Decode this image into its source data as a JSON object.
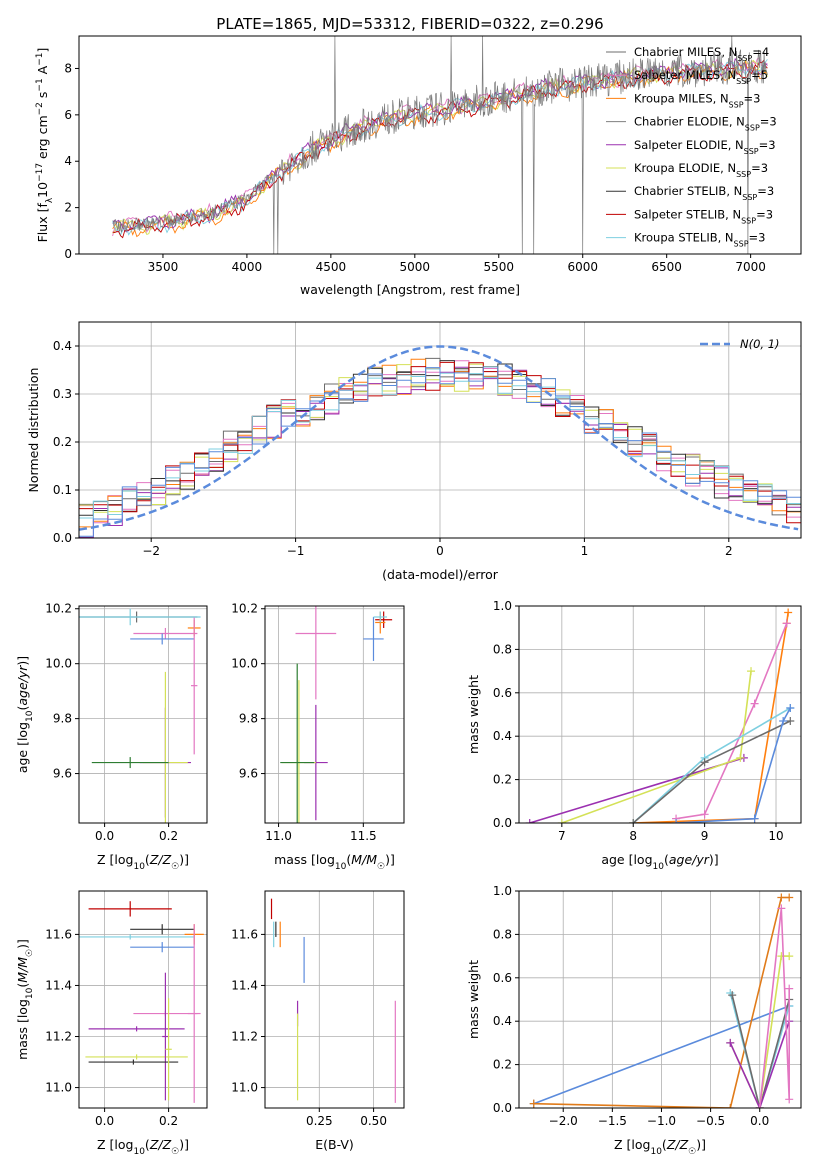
{
  "figure_title": "PLATE=1865, MJD=53312, FIBERID=0322, z=0.296",
  "colors": {
    "chabrier_miles": "#6c6c6c",
    "salpeter_miles": "#e377c2",
    "kroupa_miles": "#ff7f0e",
    "chabrier_elodie": "#7f7f7f",
    "salpeter_elodie": "#9b30b0",
    "kroupa_elodie": "#d4e157",
    "chabrier_stelib": "#333333",
    "salpeter_stelib": "#c00000",
    "kroupa_stelib": "#7ecfe0",
    "normal": "#5b8bdc",
    "blue_extra": "#5b8bdc",
    "green_extra": "#2e7d32",
    "orange_dark": "#e07b1a"
  },
  "chart_data": [
    {
      "id": "spectrum",
      "type": "line",
      "title": "PLATE=1865, MJD=53312, FIBERID=0322, z=0.296",
      "xlabel": "wavelength [Angstrom, rest frame]",
      "xlim": [
        3000,
        7300
      ],
      "ylim": [
        0,
        9.4
      ],
      "xticks": [
        3500,
        4000,
        4500,
        5000,
        5500,
        6000,
        6500,
        7000
      ],
      "yticks": [
        0,
        2,
        4,
        6,
        8
      ],
      "legend_position": "top-right",
      "legend": [
        {
          "label": "Chabrier MILES, N",
          "sub": "SSP",
          "tail": "=4",
          "color": "chabrier_miles"
        },
        {
          "label": "Salpeter MILES, N",
          "sub": "SSP",
          "tail": "=5",
          "color": "salpeter_miles"
        },
        {
          "label": "Kroupa MILES, N",
          "sub": "SSP",
          "tail": "=3",
          "color": "kroupa_miles"
        },
        {
          "label": "Chabrier ELODIE, N",
          "sub": "SSP",
          "tail": "=3",
          "color": "chabrier_elodie"
        },
        {
          "label": "Salpeter ELODIE, N",
          "sub": "SSP",
          "tail": "=3",
          "color": "salpeter_elodie"
        },
        {
          "label": "Kroupa ELODIE, N",
          "sub": "SSP",
          "tail": "=3",
          "color": "kroupa_elodie"
        },
        {
          "label": "Chabrier STELIB, N",
          "sub": "SSP",
          "tail": "=3",
          "color": "chabrier_stelib"
        },
        {
          "label": "Salpeter STELIB, N",
          "sub": "SSP",
          "tail": "=3",
          "color": "salpeter_stelib"
        },
        {
          "label": "Kroupa STELIB, N",
          "sub": "SSP",
          "tail": "=3",
          "color": "kroupa_stelib"
        }
      ],
      "continuum_x": [
        3200,
        3400,
        3600,
        3800,
        4000,
        4200,
        4400,
        4600,
        4800,
        5000,
        5200,
        5400,
        5600,
        5800,
        6000,
        6200,
        6400,
        6600,
        6800,
        7000,
        7100
      ],
      "continuum_y": [
        1.2,
        1.3,
        1.5,
        1.8,
        2.4,
        3.6,
        4.6,
        5.3,
        5.8,
        6.1,
        6.3,
        6.6,
        6.9,
        7.2,
        7.4,
        7.6,
        7.8,
        7.9,
        8.0,
        8.1,
        8.1
      ],
      "x_range": [
        3200,
        7100
      ]
    },
    {
      "id": "residuals",
      "type": "line",
      "xlabel": "(data-model)/error",
      "ylabel": "Normed distribution",
      "xlim": [
        -2.5,
        2.5
      ],
      "ylim": [
        0,
        0.45
      ],
      "xticks": [
        -2,
        -1,
        0,
        1,
        2
      ],
      "yticks": [
        0.0,
        0.1,
        0.2,
        0.3,
        0.4
      ],
      "normal_label": "N(0, 1)",
      "normal_sigma": 1.0,
      "hist_centers": [
        -2.5,
        -2.3,
        -2.1,
        -1.9,
        -1.7,
        -1.5,
        -1.3,
        -1.1,
        -0.9,
        -0.7,
        -0.5,
        -0.3,
        -0.1,
        0.1,
        0.3,
        0.5,
        0.7,
        0.9,
        1.1,
        1.3,
        1.5,
        1.7,
        1.9,
        2.1,
        2.3,
        2.5
      ],
      "hist_envelope": [
        0.03,
        0.05,
        0.08,
        0.11,
        0.14,
        0.18,
        0.22,
        0.25,
        0.27,
        0.3,
        0.32,
        0.33,
        0.34,
        0.34,
        0.34,
        0.33,
        0.31,
        0.28,
        0.24,
        0.21,
        0.18,
        0.15,
        0.12,
        0.1,
        0.08,
        0.06
      ]
    },
    {
      "id": "age_vs_Z",
      "type": "scatter",
      "xlabel": "Z [log10(Z/Z☉)]",
      "ylabel": "age [log10(age/yr)]",
      "xlim": [
        -0.08,
        0.32
      ],
      "ylim": [
        9.42,
        10.21
      ],
      "xticks": [
        0.0,
        0.2
      ],
      "yticks": [
        9.6,
        9.8,
        10.0,
        10.2
      ],
      "points": [
        {
          "x": 0.1,
          "y": 10.17,
          "xerr": 0.19,
          "yerr": 0.02,
          "color": "chabrier_miles"
        },
        {
          "x": 0.19,
          "y": 10.11,
          "xerr": 0.1,
          "yerr": 0.02,
          "color": "salpeter_miles"
        },
        {
          "x": 0.28,
          "y": 10.13,
          "xerr": 0.02,
          "yerr": 0.03,
          "color": "kroupa_miles"
        },
        {
          "x": 0.19,
          "y": 9.64,
          "xerr": 0.08,
          "yerr": 0.2,
          "color": "salpeter_elodie"
        },
        {
          "x": 0.19,
          "y": 9.64,
          "xerr": 0.07,
          "yerr": 0.33,
          "color": "kroupa_elodie"
        },
        {
          "x": 0.08,
          "y": 9.64,
          "xerr": 0.12,
          "yerr": 0.02,
          "color": "green_extra"
        },
        {
          "x": 0.18,
          "y": 10.09,
          "xerr": 0.1,
          "yerr": 0.02,
          "color": "blue_extra"
        },
        {
          "x": 0.28,
          "y": 9.92,
          "xerr": 0.01,
          "yerr": 0.25,
          "color": "salpeter_miles"
        },
        {
          "x": 0.08,
          "y": 10.17,
          "xerr": 0.22,
          "yerr": 0.03,
          "color": "kroupa_stelib"
        }
      ]
    },
    {
      "id": "age_vs_mass",
      "type": "scatter",
      "xlabel": "mass [log10(M/M☉)]",
      "ylabel": "",
      "xlim": [
        10.92,
        11.74
      ],
      "ylim": [
        9.42,
        10.21
      ],
      "xticks": [
        11.0,
        11.5
      ],
      "yticks": [
        9.6,
        9.8,
        10.0,
        10.2
      ],
      "points": [
        {
          "x": 11.62,
          "y": 10.16,
          "xerr": 0.05,
          "yerr": 0.03,
          "color": "salpeter_stelib"
        },
        {
          "x": 11.22,
          "y": 10.11,
          "xerr": 0.12,
          "yerr": 0.24,
          "color": "salpeter_miles"
        },
        {
          "x": 11.56,
          "y": 10.09,
          "xerr": 0.06,
          "yerr": 0.08,
          "color": "blue_extra"
        },
        {
          "x": 11.6,
          "y": 10.15,
          "xerr": 0.03,
          "yerr": 0.04,
          "color": "kroupa_miles"
        },
        {
          "x": 11.22,
          "y": 9.64,
          "xerr": 0.07,
          "yerr": 0.21,
          "color": "salpeter_elodie"
        },
        {
          "x": 11.12,
          "y": 9.64,
          "xerr": 0.1,
          "yerr": 0.3,
          "color": "kroupa_elodie"
        },
        {
          "x": 11.11,
          "y": 9.64,
          "xerr": 0.1,
          "yerr": 0.36,
          "color": "green_extra"
        },
        {
          "x": 11.6,
          "y": 10.17,
          "xerr": 0.04,
          "yerr": 0.02,
          "color": "kroupa_stelib"
        }
      ]
    },
    {
      "id": "mw_vs_age",
      "type": "line",
      "xlabel": "age [log10(age/yr)]",
      "ylabel": "mass weight",
      "xlim": [
        6.4,
        10.35
      ],
      "ylim": [
        0,
        1.0
      ],
      "xticks": [
        7,
        8,
        9,
        10
      ],
      "yticks": [
        0.0,
        0.2,
        0.4,
        0.6,
        0.8,
        1.0
      ],
      "series": [
        {
          "color": "kroupa_miles",
          "x": [
            8.0,
            9.7,
            10.15,
            10.17
          ],
          "y": [
            0.0,
            0.02,
            0.92,
            0.97
          ]
        },
        {
          "color": "salpeter_miles",
          "x": [
            8.6,
            9.0,
            9.7,
            10.15
          ],
          "y": [
            0.02,
            0.04,
            0.55,
            0.92
          ]
        },
        {
          "color": "salpeter_elodie",
          "x": [
            6.55,
            9.55
          ],
          "y": [
            0.0,
            0.3
          ]
        },
        {
          "color": "kroupa_elodie",
          "x": [
            7.0,
            9.5,
            9.65
          ],
          "y": [
            0.0,
            0.3,
            0.7
          ]
        },
        {
          "color": "kroupa_stelib",
          "x": [
            8.0,
            9.0,
            10.2
          ],
          "y": [
            0.0,
            0.3,
            0.53
          ]
        },
        {
          "color": "chabrier_miles",
          "x": [
            8.0,
            9.0,
            10.2
          ],
          "y": [
            0.0,
            0.28,
            0.47
          ]
        },
        {
          "color": "blue_extra",
          "x": [
            8.6,
            9.7,
            10.1,
            10.2
          ],
          "y": [
            0.0,
            0.02,
            0.47,
            0.53
          ]
        }
      ]
    },
    {
      "id": "mass_vs_Z",
      "type": "scatter",
      "xlabel": "Z [log10(Z/Z☉)]",
      "ylabel": "mass [log10(M/M☉)]",
      "xlim": [
        -0.08,
        0.32
      ],
      "ylim": [
        10.92,
        11.77
      ],
      "xticks": [
        0.0,
        0.2
      ],
      "yticks": [
        11.0,
        11.2,
        11.4,
        11.6
      ],
      "points": [
        {
          "x": 0.08,
          "y": 11.7,
          "xerr": 0.13,
          "yerr": 0.03,
          "color": "salpeter_stelib"
        },
        {
          "x": 0.18,
          "y": 11.62,
          "xerr": 0.1,
          "yerr": 0.02,
          "color": "chabrier_stelib"
        },
        {
          "x": 0.18,
          "y": 11.55,
          "xerr": 0.1,
          "yerr": 0.02,
          "color": "blue_extra"
        },
        {
          "x": 0.28,
          "y": 11.6,
          "xerr": 0.03,
          "yerr": 0.04,
          "color": "kroupa_miles"
        },
        {
          "x": 0.08,
          "y": 11.59,
          "xerr": 0.2,
          "yerr": 0.01,
          "color": "kroupa_stelib"
        },
        {
          "x": 0.28,
          "y": 11.29,
          "xerr": 0.02,
          "yerr": 0.35,
          "color": "salpeter_miles"
        },
        {
          "x": 0.19,
          "y": 11.29,
          "xerr": 0.1,
          "yerr": 0.01,
          "color": "salpeter_miles"
        },
        {
          "x": 0.1,
          "y": 11.23,
          "xerr": 0.15,
          "yerr": 0.01,
          "color": "salpeter_elodie"
        },
        {
          "x": 0.1,
          "y": 11.12,
          "xerr": 0.16,
          "yerr": 0.01,
          "color": "kroupa_elodie"
        },
        {
          "x": 0.19,
          "y": 11.2,
          "xerr": 0.01,
          "yerr": 0.25,
          "color": "salpeter_elodie"
        },
        {
          "x": 0.09,
          "y": 11.1,
          "xerr": 0.14,
          "yerr": 0.01,
          "color": "chabrier_stelib"
        },
        {
          "x": 0.2,
          "y": 11.15,
          "xerr": 0.01,
          "yerr": 0.2,
          "color": "kroupa_elodie"
        }
      ]
    },
    {
      "id": "mass_vs_EBV",
      "type": "scatter",
      "xlabel": "E(B-V)",
      "ylabel": "",
      "xlim": [
        0.0,
        0.64
      ],
      "ylim": [
        10.92,
        11.77
      ],
      "xticks": [
        0.25,
        0.5
      ],
      "yticks": [
        11.0,
        11.2,
        11.4,
        11.6
      ],
      "points": [
        {
          "x": 0.03,
          "y": 11.7,
          "xerr": 0.0,
          "yerr": 0.04,
          "color": "salpeter_stelib"
        },
        {
          "x": 0.05,
          "y": 11.62,
          "xerr": 0.0,
          "yerr": 0.03,
          "color": "chabrier_stelib"
        },
        {
          "x": 0.07,
          "y": 11.6,
          "xerr": 0.0,
          "yerr": 0.05,
          "color": "kroupa_miles"
        },
        {
          "x": 0.04,
          "y": 11.6,
          "xerr": 0.0,
          "yerr": 0.05,
          "color": "kroupa_stelib"
        },
        {
          "x": 0.18,
          "y": 11.5,
          "xerr": 0.0,
          "yerr": 0.09,
          "color": "blue_extra"
        },
        {
          "x": 0.15,
          "y": 11.29,
          "xerr": 0.0,
          "yerr": 0.05,
          "color": "salpeter_elodie"
        },
        {
          "x": 0.15,
          "y": 11.12,
          "xerr": 0.0,
          "yerr": 0.17,
          "color": "kroupa_elodie"
        },
        {
          "x": 0.6,
          "y": 11.14,
          "xerr": 0.0,
          "yerr": 0.2,
          "color": "salpeter_miles"
        }
      ]
    },
    {
      "id": "mw_vs_Z",
      "type": "line",
      "xlabel": "Z [log10(Z/Z☉)]",
      "ylabel": "mass weight",
      "xlim": [
        -2.45,
        0.42
      ],
      "ylim": [
        0,
        1.0
      ],
      "xticks": [
        -2.0,
        -1.5,
        -1.0,
        -0.5,
        0.0
      ],
      "yticks": [
        0.0,
        0.2,
        0.4,
        0.6,
        0.8,
        1.0
      ],
      "series": [
        {
          "color": "blue_extra",
          "x": [
            -2.3,
            0.3
          ],
          "y": [
            0.02,
            0.47
          ]
        },
        {
          "color": "orange_dark",
          "x": [
            -2.3,
            -0.3,
            0.22,
            0.3
          ],
          "y": [
            0.02,
            0.0,
            0.97,
            0.97
          ]
        },
        {
          "color": "kroupa_stelib",
          "x": [
            -0.3,
            0.0,
            0.3
          ],
          "y": [
            0.53,
            0.0,
            0.47
          ]
        },
        {
          "color": "chabrier_miles",
          "x": [
            -0.28,
            0.0,
            0.3
          ],
          "y": [
            0.52,
            0.0,
            0.5
          ]
        },
        {
          "color": "kroupa_elodie",
          "x": [
            -0.3,
            0.0,
            0.22,
            0.3
          ],
          "y": [
            0.3,
            0.0,
            0.7,
            0.7
          ]
        },
        {
          "color": "salpeter_elodie",
          "x": [
            -0.3,
            0.0,
            0.3
          ],
          "y": [
            0.3,
            0.0,
            0.4
          ]
        },
        {
          "color": "salpeter_miles",
          "x": [
            0.0,
            0.22,
            0.3,
            0.3
          ],
          "y": [
            0.0,
            0.92,
            0.04,
            0.55
          ]
        }
      ]
    }
  ]
}
